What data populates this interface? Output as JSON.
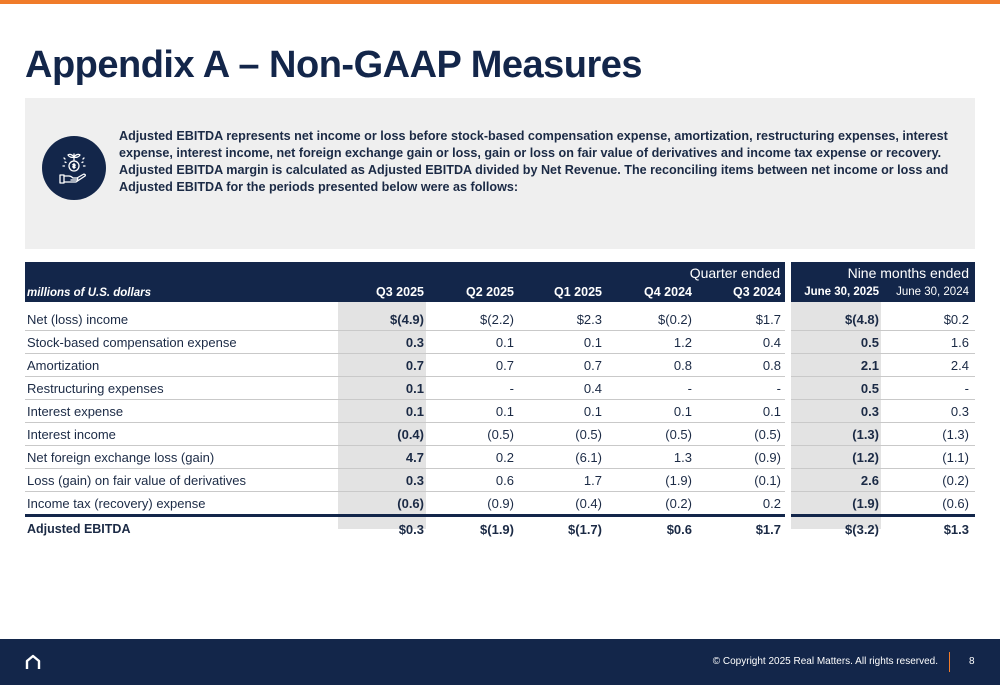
{
  "title": "Appendix A – Non-GAAP Measures",
  "description": "Adjusted EBITDA represents net income or loss before stock-based compensation expense, amortization, restructuring expenses, interest expense, interest income, net foreign exchange gain or loss, gain or loss on fair value of derivatives and income tax expense or recovery. Adjusted EBITDA margin is calculated as Adjusted EBITDA divided by Net Revenue. The reconciling items between net income or loss and Adjusted EBITDA for the periods presented below were as follows:",
  "icon": "hand-holding-money-plant-icon",
  "table": {
    "units_label": "millions of U.S. dollars",
    "group_quarter": "Quarter ended",
    "group_nine_months": "Nine months ended",
    "columns": [
      "Q3 2025",
      "Q2 2025",
      "Q1 2025",
      "Q4 2024",
      "Q3 2024",
      "June 30, 2025",
      "June 30, 2024"
    ],
    "rows": [
      {
        "label": "Net (loss) income",
        "values": [
          "$(4.9)",
          "$(2.2)",
          "$2.3",
          "$(0.2)",
          "$1.7",
          "$(4.8)",
          "$0.2"
        ]
      },
      {
        "label": "Stock-based compensation expense",
        "values": [
          "0.3",
          "0.1",
          "0.1",
          "1.2",
          "0.4",
          "0.5",
          "1.6"
        ]
      },
      {
        "label": "Amortization",
        "values": [
          "0.7",
          "0.7",
          "0.7",
          "0.8",
          "0.8",
          "2.1",
          "2.4"
        ]
      },
      {
        "label": "Restructuring expenses",
        "values": [
          "0.1",
          "-",
          "0.4",
          "-",
          "-",
          "0.5",
          "-"
        ]
      },
      {
        "label": "Interest expense",
        "values": [
          "0.1",
          "0.1",
          "0.1",
          "0.1",
          "0.1",
          "0.3",
          "0.3"
        ]
      },
      {
        "label": "Interest income",
        "values": [
          "(0.4)",
          "(0.5)",
          "(0.5)",
          "(0.5)",
          "(0.5)",
          "(1.3)",
          "(1.3)"
        ]
      },
      {
        "label": "Net foreign exchange loss (gain)",
        "values": [
          "4.7",
          "0.2",
          "(6.1)",
          "1.3",
          "(0.9)",
          "(1.2)",
          "(1.1)"
        ]
      },
      {
        "label": "Loss (gain) on fair value of derivatives",
        "values": [
          "0.3",
          "0.6",
          "1.7",
          "(1.9)",
          "(0.1)",
          "2.6",
          "(0.2)"
        ]
      },
      {
        "label": "Income tax (recovery) expense",
        "values": [
          "(0.6)",
          "(0.9)",
          "(0.4)",
          "(0.2)",
          "0.2",
          "(1.9)",
          "(0.6)"
        ]
      }
    ],
    "total": {
      "label": "Adjusted EBITDA",
      "values": [
        "$0.3",
        "$(1.9)",
        "$(1.7)",
        "$0.6",
        "$1.7",
        "$(3.2)",
        "$1.3"
      ]
    }
  },
  "footer": {
    "copyright": "© Copyright 2025 Real Matters. All rights reserved.",
    "page_number": "8",
    "logo_icon": "real-matters-house-logo-icon"
  }
}
